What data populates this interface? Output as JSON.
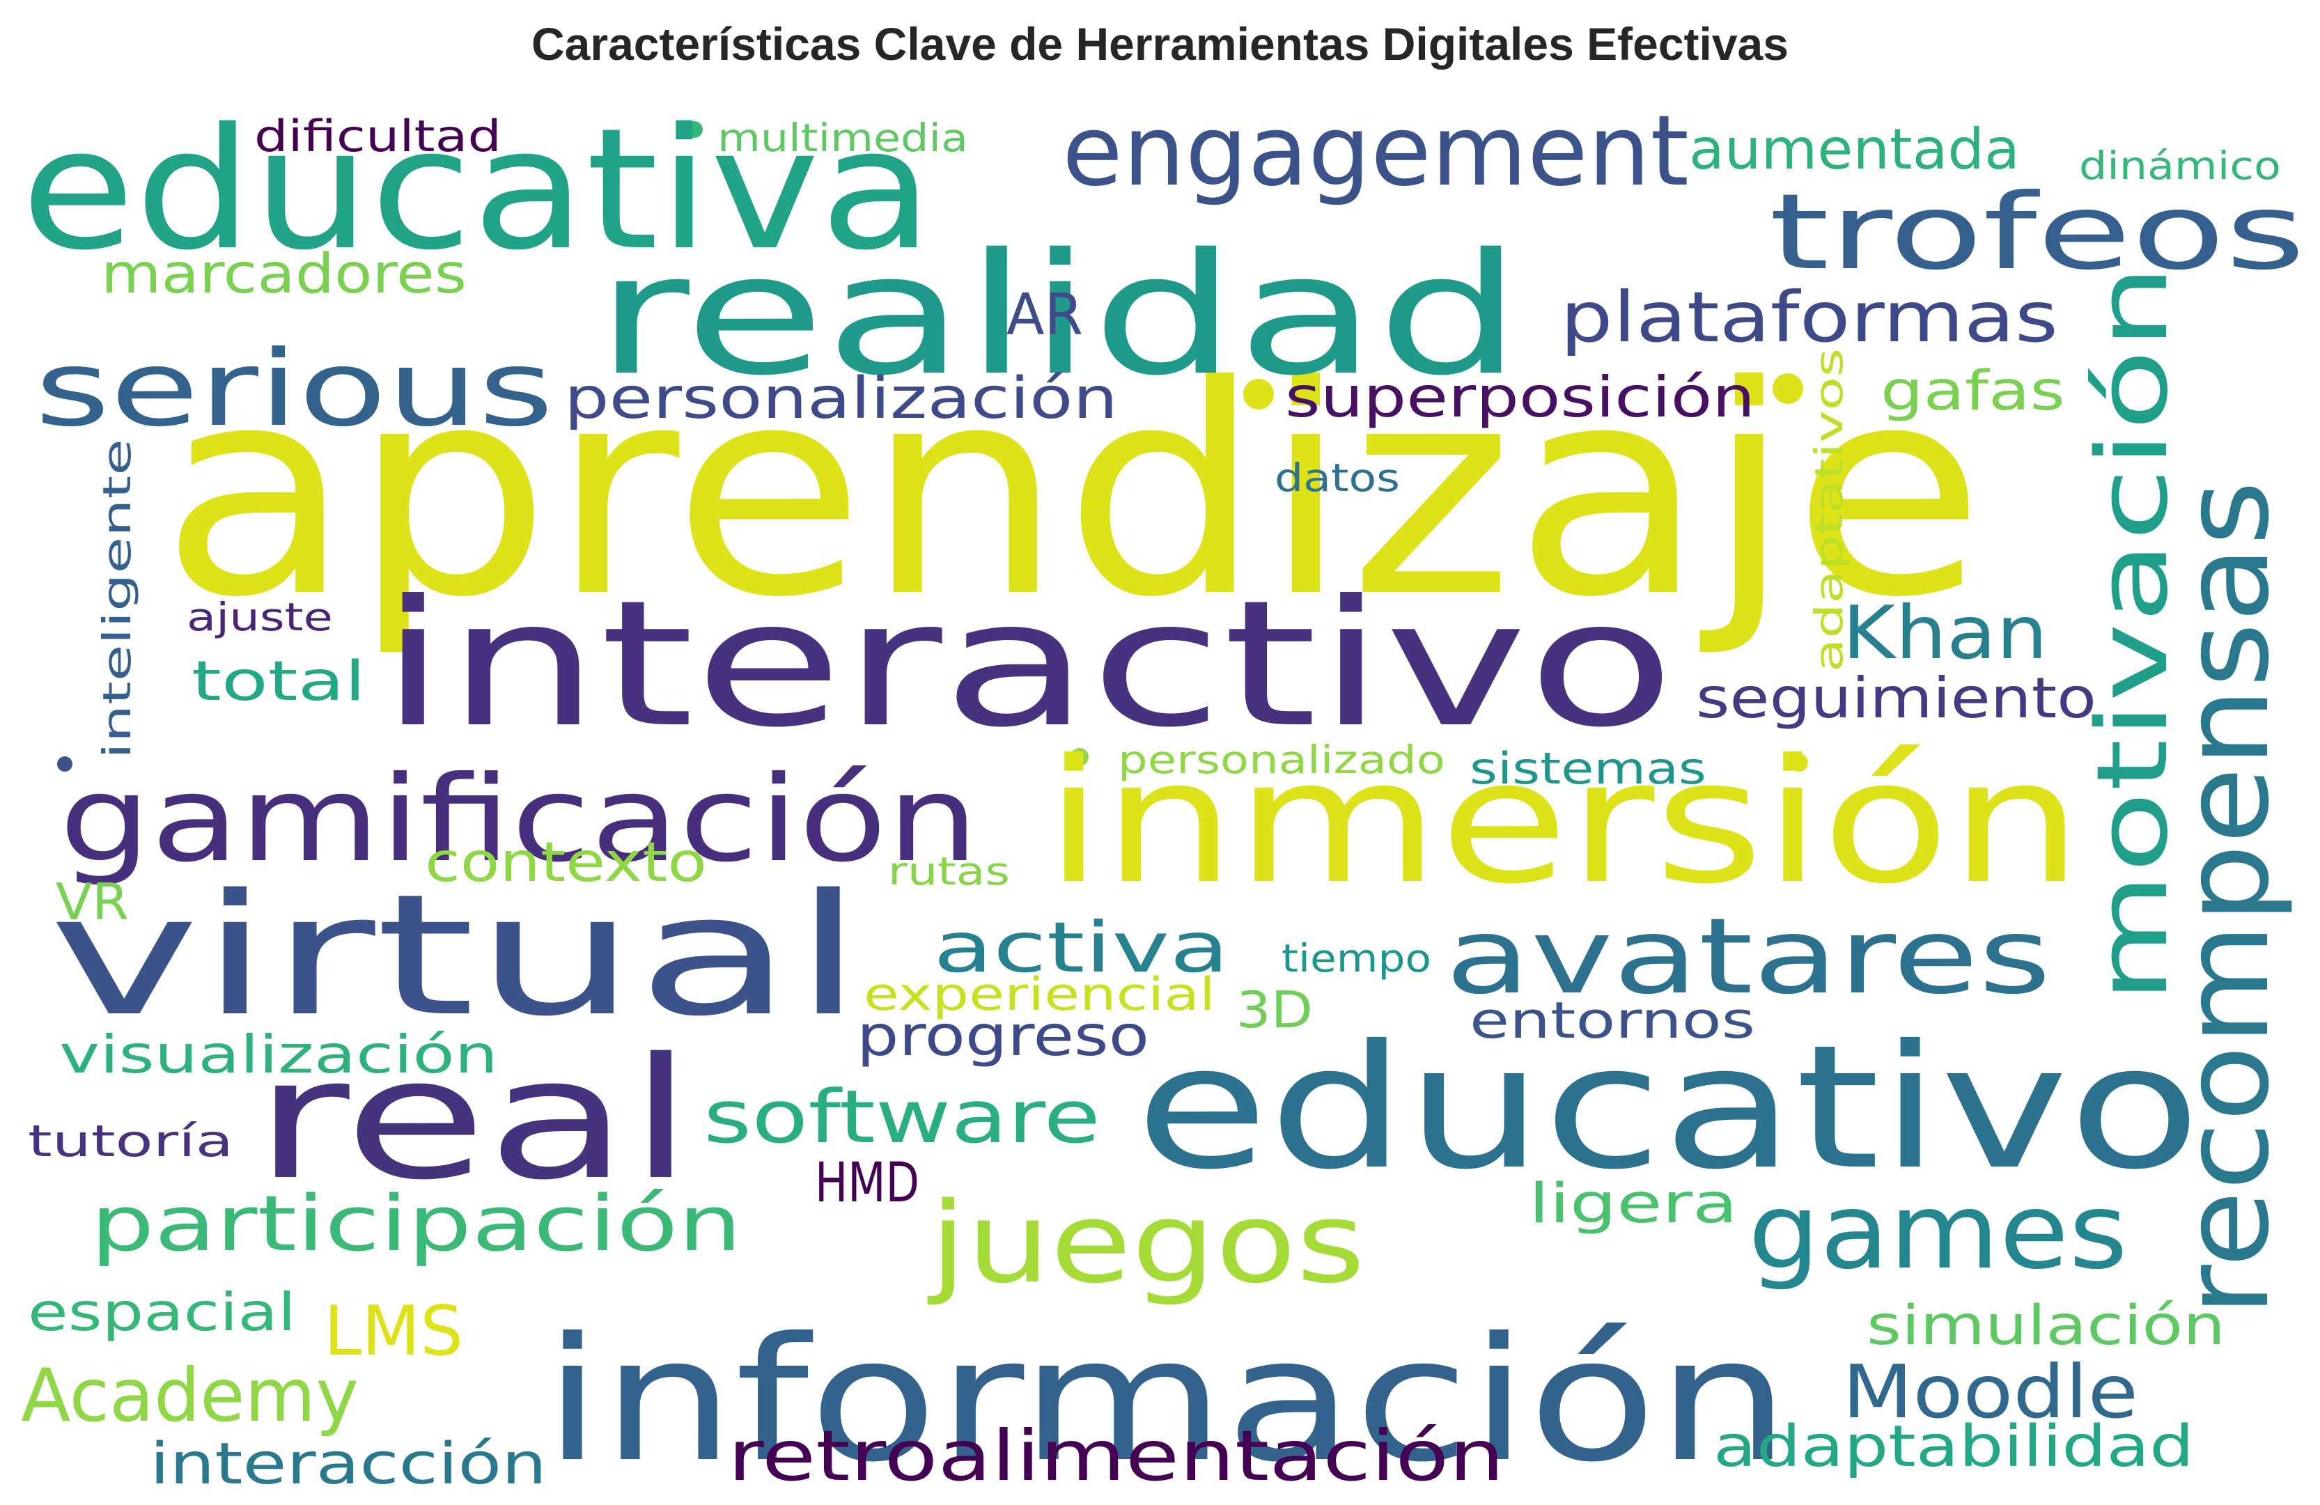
{
  "title": "Características Clave de Herramientas Digitales Efectivas",
  "words": [
    {
      "text": "aprendizaje",
      "color": "#dde318"
    },
    {
      "text": "educativa",
      "color": "#20a386"
    },
    {
      "text": "realidad",
      "color": "#1f9a8a"
    },
    {
      "text": "interactivo",
      "color": "#46327e"
    },
    {
      "text": "inmersión",
      "color": "#dde318"
    },
    {
      "text": "virtual",
      "color": "#3b528b"
    },
    {
      "text": "educativo",
      "color": "#2c728e"
    },
    {
      "text": "información",
      "color": "#33638d"
    },
    {
      "text": "real",
      "color": "#46337e"
    },
    {
      "text": "gamificación",
      "color": "#472f7d"
    },
    {
      "text": "engagement",
      "color": "#3b528b"
    },
    {
      "text": "trofeos",
      "color": "#355f8d"
    },
    {
      "text": "serious",
      "color": "#33638d"
    },
    {
      "text": "recompensas",
      "color": "#2a788e"
    },
    {
      "text": "motivación",
      "color": "#1f9e89"
    },
    {
      "text": "avatares",
      "color": "#2c728e"
    },
    {
      "text": "juegos",
      "color": "#a5db36"
    },
    {
      "text": "games",
      "color": "#24868e"
    },
    {
      "text": "participación",
      "color": "#3aba76"
    },
    {
      "text": "retroalimentación",
      "color": "#440154"
    },
    {
      "text": "software",
      "color": "#28ae80"
    },
    {
      "text": "plataformas",
      "color": "#3e4989"
    },
    {
      "text": "personalización",
      "color": "#3e4a89"
    },
    {
      "text": "superposición",
      "color": "#471063"
    },
    {
      "text": "Khan",
      "color": "#27808e"
    },
    {
      "text": "activa",
      "color": "#26828e"
    },
    {
      "text": "Academy",
      "color": "#8fd744"
    },
    {
      "text": "Moodle",
      "color": "#31688e"
    },
    {
      "text": "adaptabilidad",
      "color": "#22a884"
    },
    {
      "text": "interacción",
      "color": "#2a788e"
    },
    {
      "text": "marcadores",
      "color": "#7ad151"
    },
    {
      "text": "aumentada",
      "color": "#2db27d"
    },
    {
      "text": "seguimiento",
      "color": "#443983"
    },
    {
      "text": "LMS",
      "color": "#dde318"
    },
    {
      "text": "gafas",
      "color": "#7ad151"
    },
    {
      "text": "contexto",
      "color": "#8fd744"
    },
    {
      "text": "progreso",
      "color": "#3e4989"
    },
    {
      "text": "entornos",
      "color": "#3b528b"
    },
    {
      "text": "visualización",
      "color": "#2db27d"
    },
    {
      "text": "simulación",
      "color": "#5ec962"
    },
    {
      "text": "espacial",
      "color": "#35b779"
    },
    {
      "text": "ligera",
      "color": "#4ac16d"
    },
    {
      "text": "total",
      "color": "#22a884"
    },
    {
      "text": "sistemas",
      "color": "#1f968b"
    },
    {
      "text": "tutoría",
      "color": "#46327e"
    },
    {
      "text": "experiencial",
      "color": "#c8e020"
    },
    {
      "text": "3D",
      "color": "#6ece58"
    },
    {
      "text": "AR",
      "color": "#3e4a89"
    },
    {
      "text": "HMD",
      "color": "#440154"
    },
    {
      "text": "VR",
      "color": "#7ad151"
    },
    {
      "text": "inteligente",
      "color": "#355f8d"
    },
    {
      "text": "adaptativos",
      "color": "#bddf26"
    },
    {
      "text": "dificultad",
      "color": "#440154"
    },
    {
      "text": "multimedia",
      "color": "#5ec962"
    },
    {
      "text": "dinámico",
      "color": "#35b779"
    },
    {
      "text": "personalizado",
      "color": "#8fd744"
    },
    {
      "text": "rutas",
      "color": "#86d549"
    },
    {
      "text": "tiempo",
      "color": "#1f968b"
    },
    {
      "text": "datos",
      "color": "#2c728e"
    },
    {
      "text": "ajuste",
      "color": "#482677"
    }
  ],
  "dot_color_accent": "#dde318",
  "dot_color_green": "#35b779"
}
